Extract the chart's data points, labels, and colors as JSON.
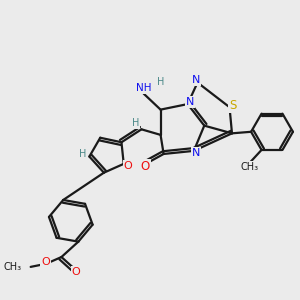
{
  "background_color": "#ebebeb",
  "bond_color": "#1a1a1a",
  "bond_width": 1.6,
  "atom_colors": {
    "N": "#1010ee",
    "O": "#ee1010",
    "S": "#c8a800",
    "H": "#4a8888",
    "C": "#1a1a1a"
  },
  "layout": {
    "xlim": [
      0,
      10
    ],
    "ylim": [
      0,
      10
    ]
  }
}
